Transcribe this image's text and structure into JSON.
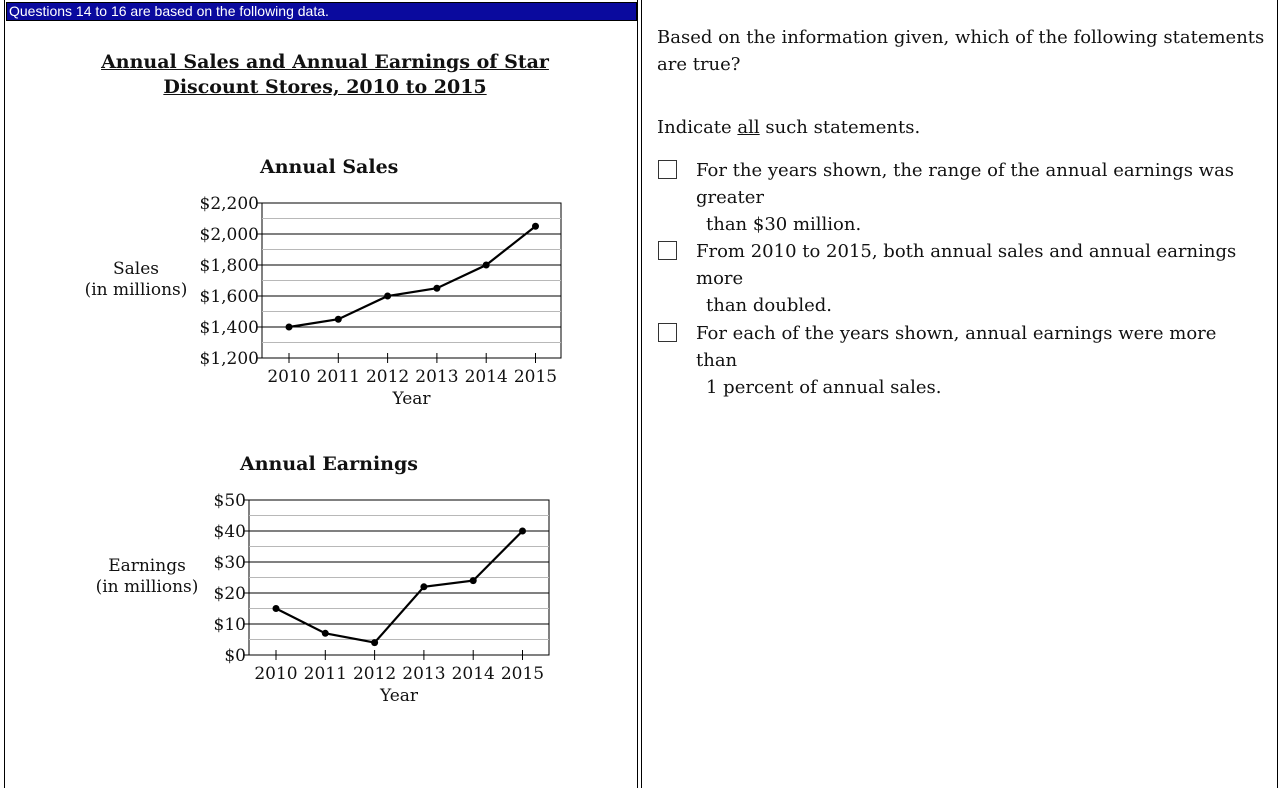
{
  "header": {
    "text": "Questions 14 to 16 are based on the following data."
  },
  "data_set": {
    "title": "Annual Sales and Annual Earnings of Star Discount Stores, 2010 to 2015"
  },
  "chart_data": [
    {
      "type": "line",
      "title": "Annual Sales",
      "ylabel_line1": "Sales",
      "ylabel_line2": "(in millions)",
      "xlabel": "Year",
      "x": [
        "2010",
        "2011",
        "2012",
        "2013",
        "2014",
        "2015"
      ],
      "values": [
        1400,
        1450,
        1600,
        1650,
        1800,
        2050
      ],
      "ylim": [
        1200,
        2200
      ],
      "yticks": [
        1200,
        1400,
        1600,
        1800,
        2000,
        2200
      ],
      "ytick_labels": [
        "$1,200",
        "$1,400",
        "$1,600",
        "$1,800",
        "$2,000",
        "$2,200"
      ],
      "grid": true
    },
    {
      "type": "line",
      "title": "Annual Earnings",
      "ylabel_line1": "Earnings",
      "ylabel_line2": "(in millions)",
      "xlabel": "Year",
      "x": [
        "2010",
        "2011",
        "2012",
        "2013",
        "2014",
        "2015"
      ],
      "values": [
        15,
        7,
        4,
        22,
        24,
        40
      ],
      "ylim": [
        0,
        50
      ],
      "yticks": [
        0,
        10,
        20,
        30,
        40,
        50
      ],
      "ytick_labels": [
        "$0",
        "$10",
        "$20",
        "$30",
        "$40",
        "$50"
      ],
      "grid": true
    }
  ],
  "question": {
    "prompt": "Based on the information given, which of the following statements are true?",
    "instruction_pre": "Indicate ",
    "instruction_emph": "all",
    "instruction_post": " such statements.",
    "options": [
      {
        "line1": "For the years shown, the range of the annual earnings was greater",
        "line2": "than $30 million.",
        "checked": false
      },
      {
        "line1": "From 2010 to 2015, both annual sales and annual earnings more",
        "line2": "than doubled.",
        "checked": false
      },
      {
        "line1": "For each of the years shown, annual earnings were more than",
        "line2": "1 percent of annual sales.",
        "checked": false
      }
    ]
  },
  "colors": {
    "header_bg": "#0a0a9e",
    "header_text": "#ffffff",
    "grid_minor": "#b8b8b8",
    "line": "#000000"
  }
}
